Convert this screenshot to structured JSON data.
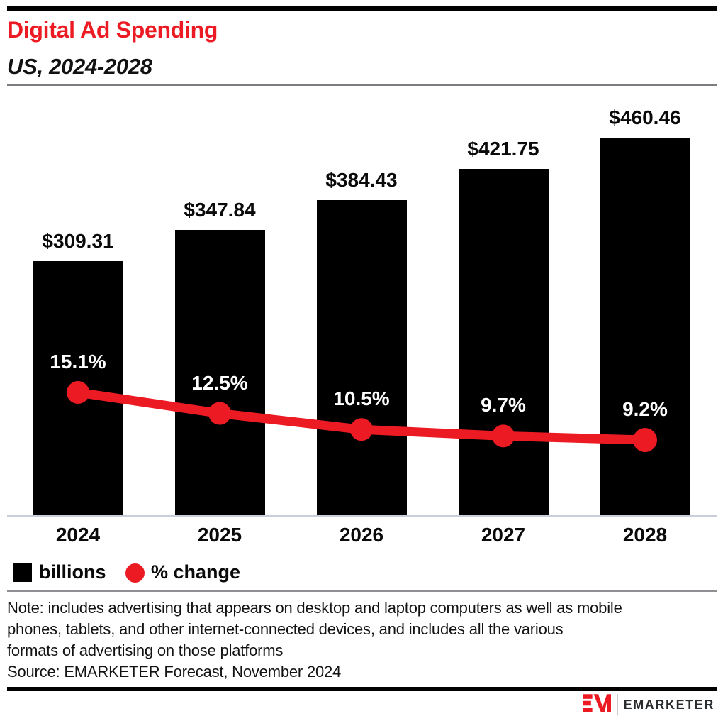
{
  "header": {
    "title": "Digital Ad Spending",
    "subtitle": "US, 2024-2028"
  },
  "chart_data": {
    "type": "bar-line-combo",
    "title": "Digital Ad Spending",
    "subtitle": "US, 2024-2028",
    "categories": [
      "2024",
      "2025",
      "2026",
      "2027",
      "2028"
    ],
    "series": [
      {
        "name": "billions",
        "type": "bar",
        "unit": "US$ billions",
        "values": [
          309.31,
          347.84,
          384.43,
          421.75,
          460.46
        ],
        "labels": [
          "$309.31",
          "$347.84",
          "$384.43",
          "$421.75",
          "$460.46"
        ],
        "color": "#000000"
      },
      {
        "name": "% change",
        "type": "line",
        "unit": "percent",
        "values": [
          15.1,
          12.5,
          10.5,
          9.7,
          9.2
        ],
        "labels": [
          "15.1%",
          "12.5%",
          "10.5%",
          "9.7%",
          "9.2%"
        ],
        "color": "#ec1b23"
      }
    ],
    "legend": [
      {
        "label": "billions",
        "swatch": "square",
        "color": "#000000"
      },
      {
        "label": "% change",
        "swatch": "circle",
        "color": "#ec1b23"
      }
    ],
    "legend_position": "bottom-left",
    "axes_hidden": true,
    "gridlines": false,
    "ylim_bars": [
      0,
      500
    ],
    "ylim_pct": [
      0,
      18
    ]
  },
  "note_lines": [
    "Note: includes advertising that appears on desktop and laptop computers as well as mobile",
    "phones, tablets, and other internet-connected devices, and includes all the various",
    "formats of advertising on those platforms"
  ],
  "source": "Source: EMARKETER Forecast, November 2024",
  "footer": {
    "logo_monogram": "EM",
    "logo_text": "EMARKETER"
  },
  "colors": {
    "accent_red": "#ec1b23",
    "bar_black": "#000000",
    "axis_line": "#c9ced8",
    "divider_gray": "#8e9094",
    "header_rule_gray": "#7b7d80"
  }
}
